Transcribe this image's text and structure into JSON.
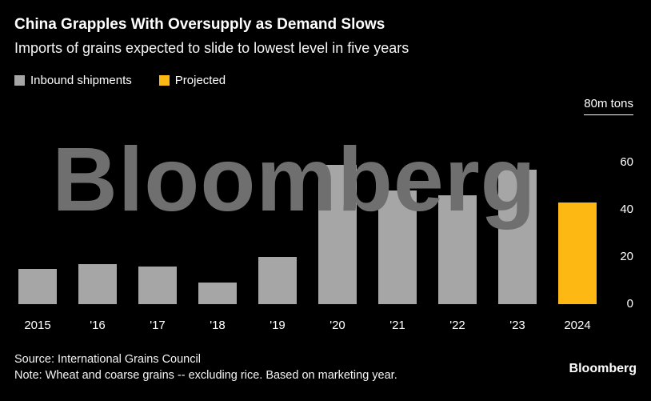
{
  "header": {
    "title": "China Grapples With Oversupply as Demand Slows",
    "subtitle": "Imports of grains expected to slide to lowest level in five years"
  },
  "legend": {
    "items": [
      {
        "label": "Inbound shipments",
        "color": "#a6a6a6"
      },
      {
        "label": "Projected",
        "color": "#fdb813"
      }
    ]
  },
  "watermark": "Bloomberg",
  "chart_data": {
    "type": "bar",
    "title": "China Grapples With Oversupply as Demand Slows",
    "subtitle": "Imports of grains expected to slide to lowest level in five years",
    "categories": [
      "2015",
      "'16",
      "'17",
      "'18",
      "'19",
      "'20",
      "'21",
      "'22",
      "'23",
      "2024"
    ],
    "values": [
      15,
      17,
      16,
      9,
      20,
      59,
      48,
      46,
      57,
      43
    ],
    "projected_index": 9,
    "unit_label": "80m tons",
    "ylabel": "m tons",
    "ylim": [
      0,
      80
    ],
    "y_ticks": [
      {
        "label": "80m tons",
        "value": 80
      },
      {
        "label": "60",
        "value": 60
      },
      {
        "label": "40",
        "value": 40
      },
      {
        "label": "20",
        "value": 20
      },
      {
        "label": "0",
        "value": 0
      }
    ],
    "legend": [
      "Inbound shipments",
      "Projected"
    ],
    "legend_position": "top-left",
    "grid": false,
    "bar_color": "#a6a6a6",
    "projected_color": "#fdb813",
    "background": "#000000"
  },
  "footer": {
    "source": "Source: International Grains Council",
    "note": "Note: Wheat and coarse grains -- excluding rice. Based on marketing year.",
    "logo": "Bloomberg"
  },
  "colors": {
    "background": "#000000",
    "bar": "#a6a6a6",
    "projected": "#fdb813",
    "watermark": "#6f6f6f",
    "text": "#ffffff"
  }
}
